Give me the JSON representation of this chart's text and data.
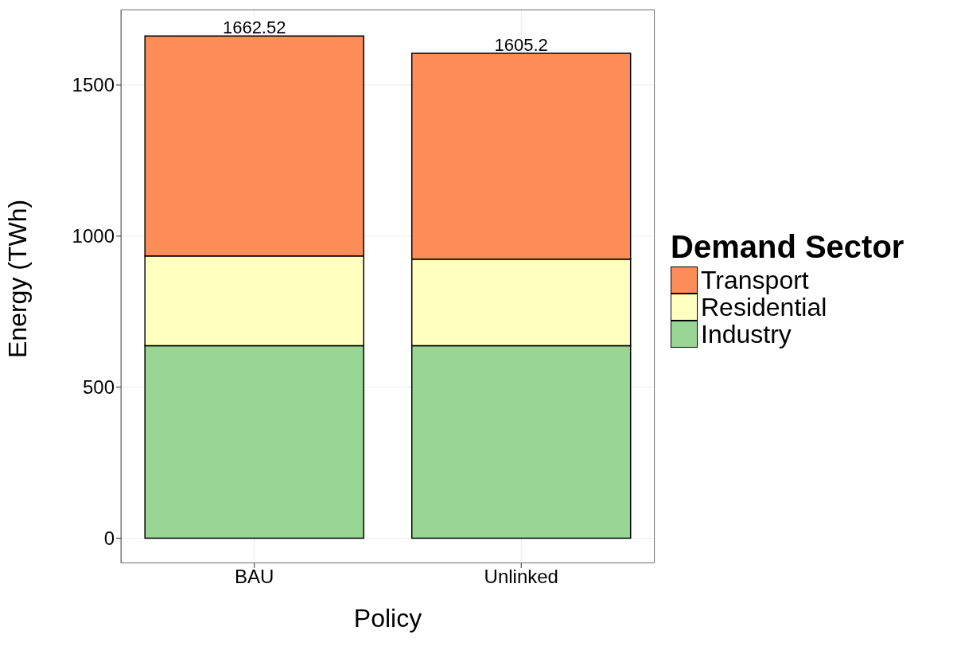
{
  "chart_data": {
    "type": "bar",
    "stacked": true,
    "xlabel": "Policy",
    "ylabel": "Energy (TWh)",
    "legend_title": "Demand Sector",
    "categories": [
      "BAU",
      "Unlinked"
    ],
    "series": [
      {
        "name": "Industry",
        "color": "#99d594",
        "values": [
          637,
          637
        ]
      },
      {
        "name": "Residential",
        "color": "#ffffbf",
        "values": [
          297,
          287
        ]
      },
      {
        "name": "Transport",
        "color": "#fc8d59",
        "values": [
          728.52,
          681.2
        ]
      }
    ],
    "totals": [
      "1662.52",
      "1605.2"
    ],
    "ylim": [
      -83,
      1750
    ],
    "yticks": [
      0,
      500,
      1000,
      1500
    ],
    "grid": true,
    "legend": "right"
  }
}
